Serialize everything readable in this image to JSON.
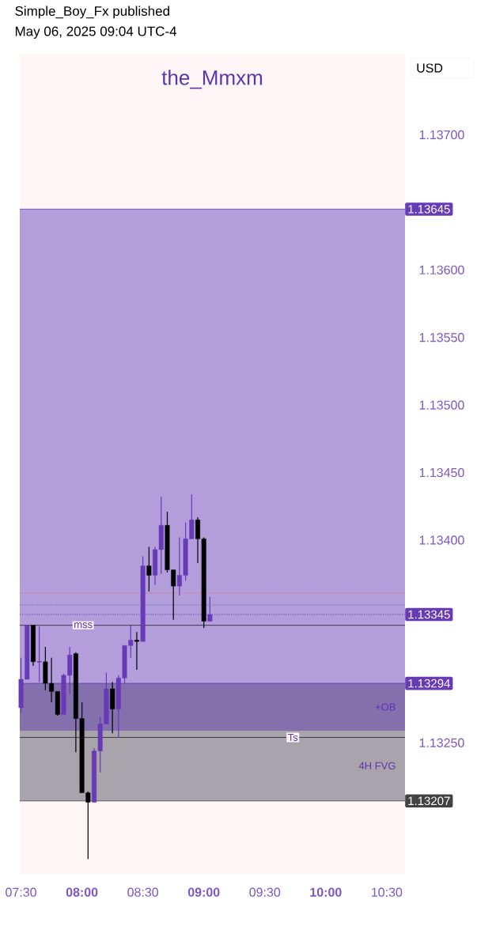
{
  "chart_data": {
    "type": "candlestick",
    "title": "the_Mmxm",
    "ylabel": "USD",
    "x": [
      7.5,
      7.55,
      7.6,
      7.65,
      7.7,
      7.75,
      7.8,
      7.85,
      7.9,
      7.95,
      8.0,
      8.05,
      8.1,
      8.15,
      8.2,
      8.25,
      8.3,
      8.35,
      8.4,
      8.45,
      8.5,
      8.55,
      8.6,
      8.65,
      8.7,
      8.75,
      8.8,
      8.85,
      8.9,
      8.95,
      9.0,
      9.05
    ],
    "ohlc": [
      [
        1.13276,
        1.13313,
        1.13272,
        1.13297
      ],
      [
        1.13297,
        1.13337,
        1.13297,
        1.13337
      ],
      [
        1.13337,
        1.13337,
        1.13307,
        1.1331
      ],
      [
        1.1331,
        1.13336,
        1.13295,
        1.1331
      ],
      [
        1.1331,
        1.13321,
        1.13289,
        1.13294
      ],
      [
        1.13294,
        1.13313,
        1.1328,
        1.13288
      ],
      [
        1.13288,
        1.13288,
        1.1327,
        1.13271
      ],
      [
        1.13271,
        1.13301,
        1.13271,
        1.133
      ],
      [
        1.133,
        1.13321,
        1.13286,
        1.13315
      ],
      [
        1.13316,
        1.13317,
        1.13243,
        1.13268
      ],
      [
        1.13268,
        1.1328,
        1.13213,
        1.13213
      ],
      [
        1.13213,
        1.13214,
        1.13164,
        1.13206
      ],
      [
        1.13206,
        1.13246,
        1.13206,
        1.13244
      ],
      [
        1.13244,
        1.13269,
        1.13228,
        1.13264
      ],
      [
        1.13264,
        1.13302,
        1.13264,
        1.1329
      ],
      [
        1.1329,
        1.13295,
        1.13257,
        1.13275
      ],
      [
        1.13275,
        1.133,
        1.13254,
        1.13298
      ],
      [
        1.13298,
        1.13322,
        1.13294,
        1.13322
      ],
      [
        1.13322,
        1.13337,
        1.13313,
        1.13326
      ],
      [
        1.13326,
        1.13332,
        1.13304,
        1.13325
      ],
      [
        1.13325,
        1.13388,
        1.13325,
        1.13381
      ],
      [
        1.13381,
        1.13395,
        1.13362,
        1.13374
      ],
      [
        1.13374,
        1.13395,
        1.13367,
        1.13393
      ],
      [
        1.13393,
        1.13432,
        1.13375,
        1.13411
      ],
      [
        1.13411,
        1.13421,
        1.13376,
        1.13378
      ],
      [
        1.13378,
        1.13378,
        1.13341,
        1.13366
      ],
      [
        1.13366,
        1.13402,
        1.13359,
        1.13374
      ],
      [
        1.13374,
        1.13413,
        1.1337,
        1.13401
      ],
      [
        1.13401,
        1.13434,
        1.13401,
        1.13415
      ],
      [
        1.13415,
        1.13417,
        1.13383,
        1.13401
      ],
      [
        1.13401,
        1.13402,
        1.13335,
        1.1334
      ],
      [
        1.1334,
        1.13358,
        1.1334,
        1.13345
      ]
    ],
    "colors": [
      "#673ab7",
      "#673ab7",
      "#000000",
      "#673ab7",
      "#000000",
      "#000000",
      "#000000",
      "#673ab7",
      "#673ab7",
      "#000000",
      "#000000",
      "#000000",
      "#673ab7",
      "#673ab7",
      "#673ab7",
      "#000000",
      "#673ab7",
      "#673ab7",
      "#673ab7",
      "#000000",
      "#673ab7",
      "#000000",
      "#673ab7",
      "#673ab7",
      "#000000",
      "#000000",
      "#673ab7",
      "#673ab7",
      "#673ab7",
      "#000000",
      "#000000",
      "#673ab7"
    ],
    "xlim": [
      7.49,
      10.65
    ],
    "xticks": [
      {
        "value": 7.5,
        "label": "07:30"
      },
      {
        "value": 8,
        "label": "08:00"
      },
      {
        "value": 8.5,
        "label": "08:30"
      },
      {
        "value": 9,
        "label": "09:00"
      },
      {
        "value": 9.5,
        "label": "09:30"
      },
      {
        "value": 10,
        "label": "10:00"
      },
      {
        "value": 10.5,
        "label": "10:30"
      }
    ],
    "ylim": [
      1.13153,
      1.1376
    ],
    "yticks": [
      {
        "value": 1.1325,
        "label": "1.13250"
      },
      {
        "value": 1.134,
        "label": "1.13400"
      },
      {
        "value": 1.1345,
        "label": "1.13450"
      },
      {
        "value": 1.135,
        "label": "1.13500"
      },
      {
        "value": 1.1355,
        "label": "1.13550"
      },
      {
        "value": 1.136,
        "label": "1.13600"
      },
      {
        "value": 1.137,
        "label": "1.13700"
      }
    ],
    "bands": [
      {
        "axis": "y",
        "from": 1.13294,
        "to": 1.13645,
        "color": "#b39ddb"
      },
      {
        "axis": "y",
        "from": 1.13259,
        "to": 1.13294,
        "label": "+OB",
        "color": "#8470ad"
      },
      {
        "axis": "y",
        "from": 1.13207,
        "to": 1.13259,
        "label": "4H FVG",
        "color": "#a9a3ab"
      }
    ],
    "ref_lines": [
      {
        "axis": "y",
        "value": 1.13645,
        "label": "1.13645",
        "color": "#673ab7",
        "line_style": "solid"
      },
      {
        "axis": "y",
        "value": 1.13345,
        "label": "1.13345",
        "color": "#673ab7",
        "line_style": "dotted"
      },
      {
        "axis": "y",
        "value": 1.13294,
        "label": "1.13294",
        "color": "#673ab7",
        "line_style": "solid"
      },
      {
        "axis": "y",
        "value": 1.13207,
        "label": "1.13207",
        "color": "#424242",
        "line_style": "solid"
      },
      {
        "axis": "y",
        "value": 1.13361,
        "color": "#e57373",
        "line_style": "dotted"
      },
      {
        "axis": "y",
        "value": 1.13352,
        "color": "#5c6bc0",
        "line_style": "dotted"
      },
      {
        "axis": "y",
        "value": 1.13337,
        "color": "#212121",
        "line_style": "solid"
      },
      {
        "axis": "y",
        "value": 1.13254,
        "color": "#212121",
        "line_style": "solid"
      }
    ],
    "annotations": [
      "Simple_Boy_Fx published",
      "May 06, 2025 09:04 UTC-4",
      {
        "text": "mss",
        "x": 8.01,
        "y": 1.13337
      },
      {
        "text": "Ts",
        "x": 9.73,
        "y": 1.13254
      }
    ]
  }
}
